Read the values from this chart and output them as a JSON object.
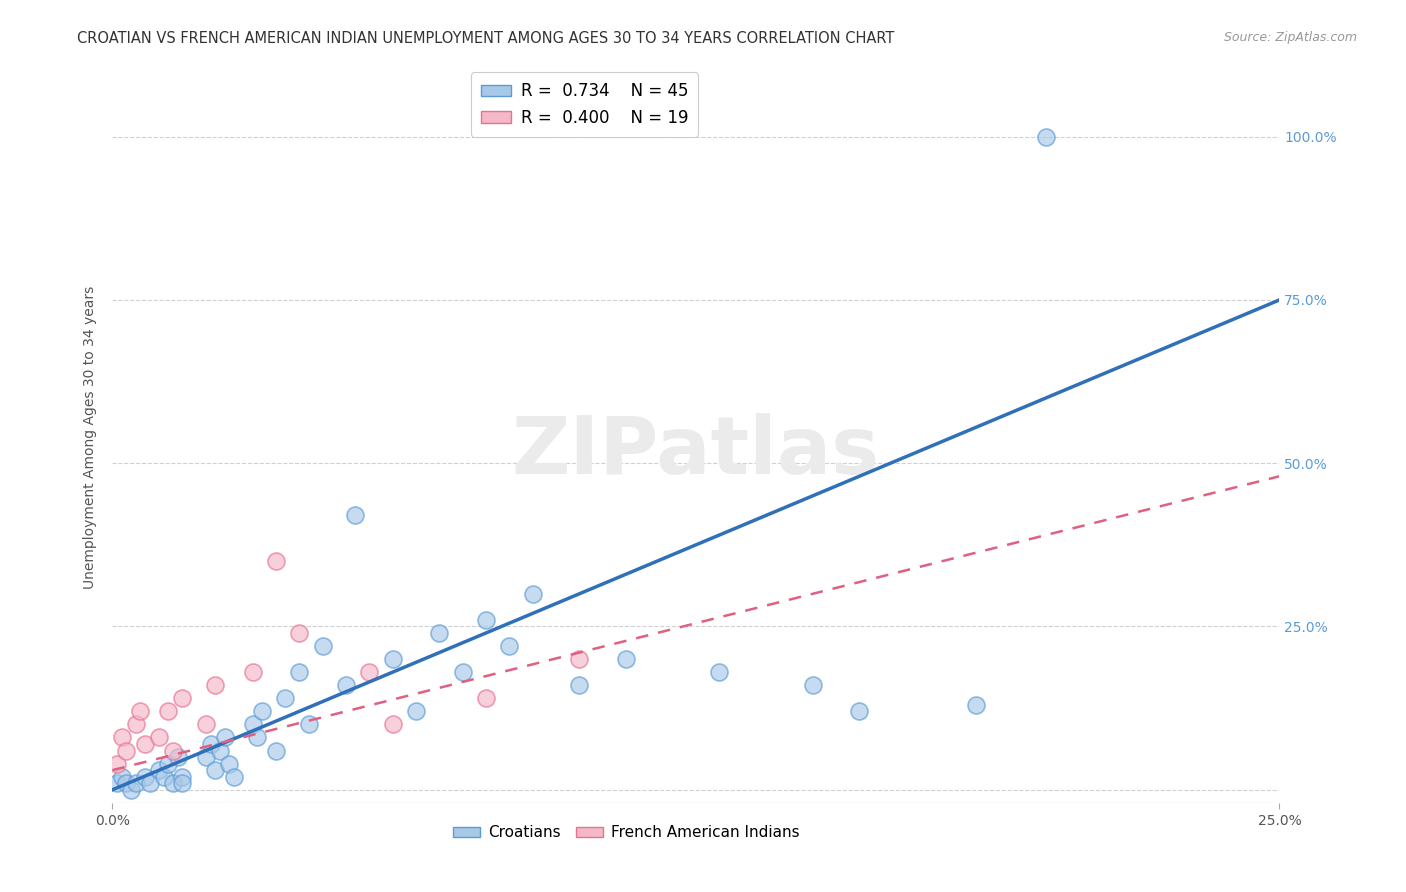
{
  "title": "CROATIAN VS FRENCH AMERICAN INDIAN UNEMPLOYMENT AMONG AGES 30 TO 34 YEARS CORRELATION CHART",
  "source": "Source: ZipAtlas.com",
  "ylabel": "Unemployment Among Ages 30 to 34 years",
  "xlim": [
    0.0,
    0.25
  ],
  "ylim": [
    -0.02,
    1.1
  ],
  "ytick_positions": [
    0.0,
    0.25,
    0.5,
    0.75,
    1.0
  ],
  "right_tick_labels": [
    "",
    "25.0%",
    "50.0%",
    "75.0%",
    "100.0%"
  ],
  "blue_color": "#a8c8e8",
  "blue_edge_color": "#5b9bd5",
  "pink_color": "#f4b8c8",
  "pink_edge_color": "#e87090",
  "blue_line_color": "#3070b8",
  "pink_line_color": "#e06080",
  "right_tick_color": "#5b9bd5",
  "legend_R_blue": "0.734",
  "legend_N_blue": "45",
  "legend_R_pink": "0.400",
  "legend_N_pink": "19",
  "legend_label_blue": "Croatians",
  "legend_label_pink": "French American Indians",
  "watermark_text": "ZIPatlas",
  "blue_line_x": [
    0.0,
    0.25
  ],
  "blue_line_y": [
    0.0,
    0.75
  ],
  "pink_line_x": [
    0.0,
    0.25
  ],
  "pink_line_y": [
    0.03,
    0.48
  ],
  "blue_scatter_x": [
    0.001,
    0.002,
    0.003,
    0.004,
    0.005,
    0.007,
    0.008,
    0.01,
    0.011,
    0.012,
    0.013,
    0.014,
    0.015,
    0.015,
    0.02,
    0.021,
    0.022,
    0.023,
    0.024,
    0.025,
    0.026,
    0.03,
    0.031,
    0.032,
    0.035,
    0.037,
    0.04,
    0.042,
    0.045,
    0.05,
    0.052,
    0.06,
    0.065,
    0.07,
    0.075,
    0.08,
    0.085,
    0.09,
    0.1,
    0.11,
    0.13,
    0.15,
    0.16,
    0.185,
    0.2
  ],
  "blue_scatter_y": [
    0.01,
    0.02,
    0.01,
    0.0,
    0.01,
    0.02,
    0.01,
    0.03,
    0.02,
    0.04,
    0.01,
    0.05,
    0.02,
    0.01,
    0.05,
    0.07,
    0.03,
    0.06,
    0.08,
    0.04,
    0.02,
    0.1,
    0.08,
    0.12,
    0.06,
    0.14,
    0.18,
    0.1,
    0.22,
    0.16,
    0.42,
    0.2,
    0.12,
    0.24,
    0.18,
    0.26,
    0.22,
    0.3,
    0.16,
    0.2,
    0.18,
    0.16,
    0.12,
    0.13,
    1.0
  ],
  "pink_scatter_x": [
    0.001,
    0.002,
    0.003,
    0.005,
    0.006,
    0.007,
    0.01,
    0.012,
    0.013,
    0.015,
    0.02,
    0.022,
    0.03,
    0.035,
    0.04,
    0.055,
    0.06,
    0.08,
    0.1
  ],
  "pink_scatter_y": [
    0.04,
    0.08,
    0.06,
    0.1,
    0.12,
    0.07,
    0.08,
    0.12,
    0.06,
    0.14,
    0.1,
    0.16,
    0.18,
    0.35,
    0.24,
    0.18,
    0.1,
    0.14,
    0.2
  ],
  "background_color": "#ffffff",
  "grid_color": "#d0d0d0",
  "title_fontsize": 10.5,
  "axis_label_fontsize": 10,
  "tick_fontsize": 10
}
